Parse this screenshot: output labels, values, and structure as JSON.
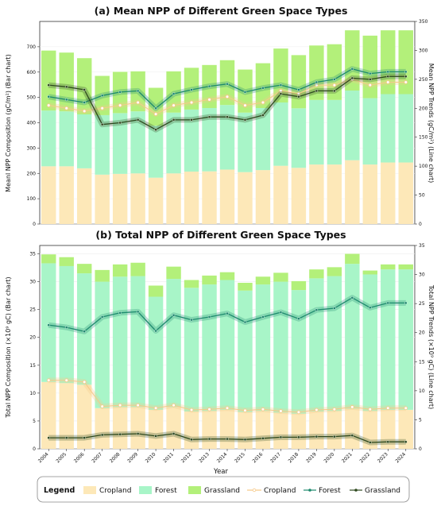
{
  "colors": {
    "cropland_bar": "#fde8b8",
    "forest_bar": "#a8f5c8",
    "grassland_bar": "#b3f07a",
    "cropland_line": "#f6c98a",
    "forest_line": "#1e8a6e",
    "grassland_line": "#2f4a1f"
  },
  "legend": {
    "title": "Legend",
    "items": [
      "Cropland",
      "Forest",
      "Grassland",
      "Cropland",
      "Forest",
      "Grassland"
    ]
  },
  "chart_data": [
    {
      "type": "bar",
      "title": "(a) Mean NPP of Different Green Space Types",
      "xlabel": "",
      "ylabel": "Meanl NPP Composition (gC/m²) (Bar chart)",
      "ylabel_right": "Mean NPP Trends (gC/m²) (Line chart)",
      "ylim": [
        0,
        800
      ],
      "ylim_right": [
        0,
        350
      ],
      "yticks": [
        0,
        100,
        200,
        300,
        400,
        500,
        600,
        700
      ],
      "yticks_right": [
        0,
        50,
        100,
        150,
        200,
        250,
        300,
        350
      ],
      "categories": [
        "2004",
        "2005",
        "2006",
        "2007",
        "2008",
        "2009",
        "2010",
        "2011",
        "2012",
        "2013",
        "2014",
        "2015",
        "2016",
        "2017",
        "2018",
        "2019",
        "2020",
        "2021",
        "2022",
        "2023",
        "2024"
      ],
      "bar_series": [
        {
          "name": "Cropland",
          "values": [
            228,
            228,
            220,
            195,
            198,
            200,
            183,
            200,
            207,
            208,
            215,
            205,
            213,
            230,
            222,
            235,
            235,
            252,
            235,
            243,
            243
          ]
        },
        {
          "name": "Forest",
          "values": [
            220,
            217,
            213,
            235,
            240,
            245,
            205,
            240,
            245,
            250,
            255,
            235,
            245,
            250,
            235,
            255,
            255,
            275,
            262,
            270,
            270
          ]
        },
        {
          "name": "Grassland",
          "values": [
            237,
            232,
            222,
            155,
            163,
            158,
            150,
            163,
            165,
            170,
            177,
            170,
            177,
            213,
            210,
            215,
            220,
            238,
            247,
            252,
            252
          ]
        }
      ],
      "line_series": [
        {
          "name": "Cropland",
          "values": [
            205,
            200,
            195,
            200,
            205,
            210,
            190,
            205,
            210,
            215,
            220,
            205,
            210,
            230,
            225,
            240,
            240,
            250,
            240,
            245,
            245
          ]
        },
        {
          "name": "Forest",
          "values": [
            220,
            215,
            210,
            222,
            228,
            230,
            200,
            225,
            232,
            238,
            242,
            228,
            235,
            240,
            232,
            245,
            250,
            268,
            260,
            263,
            263
          ]
        },
        {
          "name": "Grassland",
          "values": [
            240,
            237,
            232,
            172,
            175,
            180,
            163,
            180,
            180,
            185,
            185,
            180,
            188,
            225,
            220,
            230,
            230,
            252,
            250,
            255,
            255
          ]
        }
      ]
    },
    {
      "type": "bar",
      "title": "(b) Total NPP of Different Green Space Types",
      "xlabel": "Year",
      "ylabel": "Total NPP Composition (×10⁹ gC) (Bar chart)",
      "ylabel_right": "Total NPP Trends (×10⁹ gC) (Line chart)",
      "ylim": [
        0,
        36.5
      ],
      "ylim_right": [
        0,
        35
      ],
      "yticks": [
        0,
        5,
        10,
        15,
        20,
        25,
        30,
        35
      ],
      "yticks_right": [
        0,
        5,
        10,
        15,
        20,
        25,
        30,
        35
      ],
      "categories": [
        "2004",
        "2005",
        "2006",
        "2007",
        "2008",
        "2009",
        "2010",
        "2011",
        "2012",
        "2013",
        "2014",
        "2015",
        "2016",
        "2017",
        "2018",
        "2019",
        "2020",
        "2021",
        "2022",
        "2023",
        "2024"
      ],
      "bar_series": [
        {
          "name": "Cropland",
          "values": [
            12.0,
            11.8,
            11.5,
            7.3,
            7.5,
            7.5,
            7.0,
            7.5,
            6.7,
            6.8,
            7.0,
            6.6,
            6.8,
            6.5,
            6.3,
            6.7,
            6.8,
            7.2,
            6.8,
            7.0,
            7.0
          ]
        },
        {
          "name": "Forest",
          "values": [
            21.3,
            21.0,
            20.0,
            22.7,
            23.4,
            23.5,
            20.3,
            23.0,
            22.2,
            22.7,
            23.3,
            21.8,
            22.7,
            23.5,
            22.2,
            23.9,
            24.2,
            26.0,
            24.5,
            25.2,
            25.2
          ]
        },
        {
          "name": "Grassland",
          "values": [
            1.6,
            1.6,
            1.7,
            2.1,
            2.2,
            2.4,
            2.0,
            2.2,
            1.4,
            1.6,
            1.4,
            1.4,
            1.4,
            1.6,
            1.6,
            1.6,
            1.6,
            1.8,
            0.7,
            0.9,
            0.9
          ]
        }
      ],
      "line_series": [
        {
          "name": "Cropland",
          "values": [
            11.8,
            11.8,
            11.5,
            7.3,
            7.5,
            7.5,
            7.0,
            7.5,
            6.7,
            6.8,
            7.0,
            6.6,
            6.8,
            6.5,
            6.3,
            6.7,
            6.8,
            7.2,
            6.8,
            7.0,
            7.0
          ]
        },
        {
          "name": "Forest",
          "values": [
            21.3,
            20.9,
            20.2,
            22.7,
            23.4,
            23.6,
            20.3,
            23.0,
            22.2,
            22.7,
            23.3,
            21.8,
            22.7,
            23.5,
            22.4,
            23.9,
            24.2,
            26.0,
            24.3,
            25.1,
            25.1
          ]
        },
        {
          "name": "Grassland",
          "values": [
            1.9,
            1.9,
            1.9,
            2.4,
            2.5,
            2.6,
            2.2,
            2.6,
            1.6,
            1.7,
            1.7,
            1.6,
            1.8,
            2.0,
            2.0,
            2.1,
            2.1,
            2.3,
            1.1,
            1.2,
            1.2
          ]
        }
      ]
    }
  ]
}
